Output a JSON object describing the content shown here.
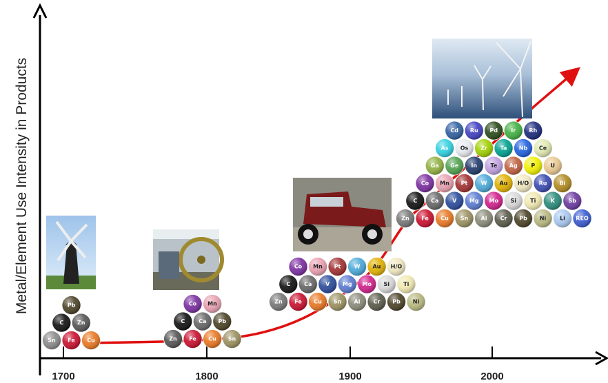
{
  "axis": {
    "y_label": "Metal/Element Use Intensity in Products",
    "x_ticks": [
      "1700",
      "1800",
      "1900",
      "2000"
    ]
  },
  "groups": [
    {
      "rows": [
        [
          {
            "label": "Sn",
            "color": "#8a8a8a"
          },
          {
            "label": "Fe",
            "color": "#c8102e"
          },
          {
            "label": "Cu",
            "color": "#e87722"
          }
        ],
        [
          {
            "label": "C",
            "color": "#111111"
          },
          {
            "label": "Zn",
            "color": "#555555"
          }
        ],
        [
          {
            "label": "Pb",
            "color": "#4b4226"
          }
        ]
      ]
    },
    {
      "rows": [
        [
          {
            "label": "Zn",
            "color": "#555555"
          },
          {
            "label": "Fe",
            "color": "#c8102e"
          },
          {
            "label": "Cu",
            "color": "#e87722"
          },
          {
            "label": "Sn",
            "color": "#9a9060"
          }
        ],
        [
          {
            "label": "C",
            "color": "#111111"
          },
          {
            "label": "Ca",
            "color": "#666666"
          },
          {
            "label": "Pb",
            "color": "#4b4226"
          }
        ],
        [
          {
            "label": "Co",
            "color": "#7a2ea0"
          },
          {
            "label": "Mn",
            "color": "#e8a0b0"
          }
        ]
      ]
    },
    {
      "rows": [
        [
          {
            "label": "Zn",
            "color": "#777777"
          },
          {
            "label": "Fe",
            "color": "#c8102e"
          },
          {
            "label": "Cu",
            "color": "#e87722"
          },
          {
            "label": "Sn",
            "color": "#9a9060"
          },
          {
            "label": "Al",
            "color": "#8a8a78"
          },
          {
            "label": "Cr",
            "color": "#5a5a4a"
          },
          {
            "label": "Pb",
            "color": "#4b4226"
          },
          {
            "label": "Ni",
            "color": "#b8b880"
          }
        ],
        [
          {
            "label": "C",
            "color": "#111111"
          },
          {
            "label": "Ca",
            "color": "#666666"
          },
          {
            "label": "V",
            "color": "#2a4a9a"
          },
          {
            "label": "Mg",
            "color": "#5a7ad0"
          },
          {
            "label": "Mo",
            "color": "#d0208a"
          },
          {
            "label": "Si",
            "color": "#d8d8d8"
          },
          {
            "label": "Ti",
            "color": "#f0e8b0"
          }
        ],
        [
          {
            "label": "Co",
            "color": "#7a2ea0"
          },
          {
            "label": "Mn",
            "color": "#e8a0b0"
          },
          {
            "label": "Pt",
            "color": "#a03030"
          },
          {
            "label": "W",
            "color": "#4aa8d8"
          },
          {
            "label": "Au",
            "color": "#e0b000"
          },
          {
            "label": "H/O",
            "color": "#f0e8c0"
          }
        ]
      ]
    },
    {
      "rows": [
        [
          {
            "label": "Zn",
            "color": "#777777"
          },
          {
            "label": "Fe",
            "color": "#c8102e"
          },
          {
            "label": "Cu",
            "color": "#e87722"
          },
          {
            "label": "Sn",
            "color": "#9a9060"
          },
          {
            "label": "Al",
            "color": "#8a8a78"
          },
          {
            "label": "Cr",
            "color": "#5a5a4a"
          },
          {
            "label": "Pb",
            "color": "#4b4226"
          },
          {
            "label": "Ni",
            "color": "#b8b880"
          },
          {
            "label": "Li",
            "color": "#a8c8f0"
          },
          {
            "label": "REO",
            "color": "#3a5ad0"
          }
        ],
        [
          {
            "label": "C",
            "color": "#111111"
          },
          {
            "label": "Ca",
            "color": "#666666"
          },
          {
            "label": "V",
            "color": "#2a4a9a"
          },
          {
            "label": "Mg",
            "color": "#5a7ad0"
          },
          {
            "label": "Mo",
            "color": "#d0208a"
          },
          {
            "label": "Si",
            "color": "#d8d8d8"
          },
          {
            "label": "Ti",
            "color": "#f0e8b0"
          },
          {
            "label": "K",
            "color": "#2a8a7a"
          },
          {
            "label": "Sb",
            "color": "#6a3aa0"
          }
        ],
        [
          {
            "label": "Co",
            "color": "#7a2ea0"
          },
          {
            "label": "Mn",
            "color": "#e8a0b0"
          },
          {
            "label": "Pt",
            "color": "#a03030"
          },
          {
            "label": "W",
            "color": "#4aa8d8"
          },
          {
            "label": "Au",
            "color": "#e0b000"
          },
          {
            "label": "H/O",
            "color": "#f0e8c0"
          },
          {
            "label": "Ru",
            "color": "#3a4ab0"
          },
          {
            "label": "Bi",
            "color": "#b08a20"
          }
        ],
        [
          {
            "label": "Ga",
            "color": "#90b040"
          },
          {
            "label": "Ge",
            "color": "#50a050"
          },
          {
            "label": "In",
            "color": "#203a6a"
          },
          {
            "label": "Te",
            "color": "#c0a0e0"
          },
          {
            "label": "Ag",
            "color": "#c06040"
          },
          {
            "label": "P",
            "color": "#f0f000"
          },
          {
            "label": "U",
            "color": "#e8c890"
          }
        ],
        [
          {
            "label": "As",
            "color": "#30d0e0"
          },
          {
            "label": "Os",
            "color": "#e8e8f0"
          },
          {
            "label": "Zr",
            "color": "#a0d000"
          },
          {
            "label": "Ta",
            "color": "#00a090"
          },
          {
            "label": "Nb",
            "color": "#2060e0"
          },
          {
            "label": "Ce",
            "color": "#e0e8b0"
          }
        ],
        [
          {
            "label": "Cd",
            "color": "#3060a0"
          },
          {
            "label": "Ru",
            "color": "#4040c0"
          },
          {
            "label": "Pd",
            "color": "#2a4a1a"
          },
          {
            "label": "Ir",
            "color": "#40b040"
          },
          {
            "label": "Rh",
            "color": "#1a2a7a"
          }
        ]
      ]
    }
  ]
}
